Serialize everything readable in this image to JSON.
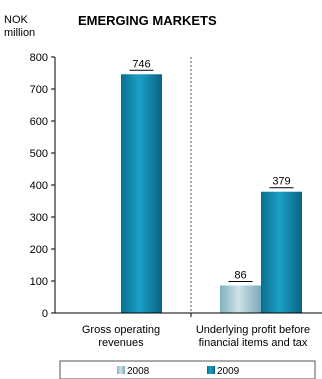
{
  "chart_data": {
    "type": "bar",
    "title": "EMERGING MARKETS",
    "unit_label_lines": [
      "NOK",
      "million"
    ],
    "categories": [
      [
        "Gross operating",
        "revenues"
      ],
      [
        "Underlying profit before",
        "financial items and tax"
      ]
    ],
    "series": [
      {
        "name": "2008",
        "values": [
          null,
          86
        ]
      },
      {
        "name": "2009",
        "values": [
          746,
          379
        ]
      }
    ],
    "data_labels": [
      {
        "series": 1,
        "category": 0,
        "text": "746"
      },
      {
        "series": 0,
        "category": 1,
        "text": "86"
      },
      {
        "series": 1,
        "category": 1,
        "text": "379"
      }
    ],
    "ylim": [
      0,
      800
    ],
    "yticks": [
      0,
      100,
      200,
      300,
      400,
      500,
      600,
      700,
      800
    ],
    "grid": false,
    "legend_position": "bottom",
    "colors": {
      "title": "#b8860b",
      "series_2008": "#9cc4d4",
      "series_2009": "#0e85a8",
      "axis": "#000000",
      "divider": "#555555"
    }
  }
}
